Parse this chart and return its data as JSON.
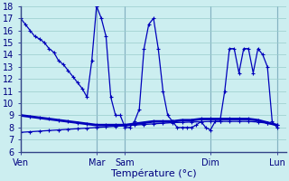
{
  "xlabel": "Température (°c)",
  "bg_color": "#cceef0",
  "line_color": "#0000bb",
  "grid_color": "#99cccc",
  "ylim": [
    6,
    18
  ],
  "yticks": [
    6,
    7,
    8,
    9,
    10,
    11,
    12,
    13,
    14,
    15,
    16,
    17,
    18
  ],
  "xlim": [
    0,
    28
  ],
  "day_labels": [
    "Ven",
    "Mar",
    "Sam",
    "Dim",
    "Lun"
  ],
  "day_positions": [
    0,
    8,
    11,
    20,
    27
  ],
  "vline_positions": [
    0,
    8,
    11,
    20,
    27
  ],
  "line1_x": [
    0,
    0.5,
    1,
    1.5,
    2,
    2.5,
    3,
    3.5,
    4,
    4.5,
    5,
    5.5,
    6,
    6.5,
    7,
    7.5,
    8,
    8.5,
    9,
    9.5,
    10,
    10.5,
    11,
    11.5,
    12,
    12.5,
    13,
    13.5,
    14,
    14.5,
    15,
    15.5,
    16,
    16.5,
    17,
    17.5,
    18,
    18.5,
    19,
    19.5,
    20,
    20.5,
    21,
    21.5,
    22,
    22.5,
    23,
    23.5,
    24,
    24.5,
    25,
    25.5,
    26,
    26.5,
    27
  ],
  "line1_y": [
    17,
    16.5,
    16.0,
    15.5,
    15.3,
    15.0,
    14.5,
    14.2,
    13.5,
    13.2,
    12.7,
    12.2,
    11.7,
    11.2,
    10.5,
    13.5,
    18.0,
    17.0,
    15.5,
    10.5,
    9.0,
    9.0,
    8.0,
    8.0,
    8.5,
    9.5,
    14.5,
    16.5,
    17.0,
    14.5,
    11.0,
    9.0,
    8.5,
    8.0,
    8.0,
    8.0,
    8.0,
    8.2,
    8.5,
    8.0,
    7.8,
    8.5,
    8.5,
    11.0,
    14.5,
    14.5,
    12.5,
    14.5,
    14.5,
    12.5,
    14.5,
    14.0,
    13.0,
    8.5,
    8.0
  ],
  "line2_x": [
    0,
    1,
    2,
    3,
    4,
    5,
    6,
    7,
    8,
    9,
    10,
    11,
    12,
    13,
    14,
    15,
    16,
    17,
    18,
    19,
    20,
    21,
    22,
    23,
    24,
    25,
    26,
    27
  ],
  "line2_y": [
    9.0,
    8.9,
    8.8,
    8.7,
    8.6,
    8.5,
    8.4,
    8.3,
    8.2,
    8.2,
    8.2,
    8.2,
    8.3,
    8.4,
    8.5,
    8.5,
    8.5,
    8.6,
    8.6,
    8.7,
    8.7,
    8.7,
    8.7,
    8.7,
    8.7,
    8.6,
    8.4,
    8.2
  ],
  "line3_x": [
    0,
    1,
    2,
    3,
    4,
    5,
    6,
    7,
    8,
    9,
    10,
    11,
    12,
    13,
    14,
    15,
    16,
    17,
    18,
    19,
    20,
    21,
    22,
    23,
    24,
    25,
    26,
    27
  ],
  "line3_y": [
    7.6,
    7.65,
    7.7,
    7.75,
    7.8,
    7.85,
    7.9,
    7.95,
    8.0,
    8.05,
    8.1,
    8.15,
    8.2,
    8.25,
    8.3,
    8.35,
    8.4,
    8.42,
    8.45,
    8.47,
    8.5,
    8.5,
    8.5,
    8.5,
    8.5,
    8.45,
    8.35,
    8.2
  ]
}
